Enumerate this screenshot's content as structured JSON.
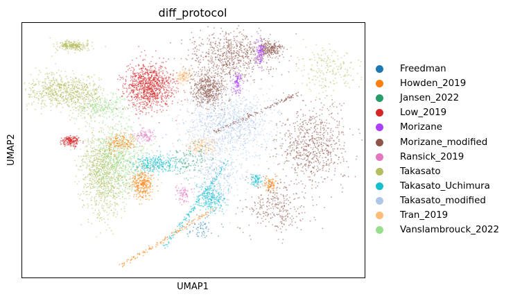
{
  "chart_data": {
    "type": "scatter",
    "title": "diff_protocol",
    "xlabel": "UMAP1",
    "ylabel": "UMAP2",
    "xticks": [],
    "yticks": [],
    "grid": false,
    "legend_position": "right",
    "series": [
      {
        "name": "Freedman",
        "color": "#1f77b4"
      },
      {
        "name": "Howden_2019",
        "color": "#ff7f0e"
      },
      {
        "name": "Jansen_2022",
        "color": "#279e68"
      },
      {
        "name": "Low_2019",
        "color": "#d62728"
      },
      {
        "name": "Morizane",
        "color": "#aa40fc"
      },
      {
        "name": "Morizane_modified",
        "color": "#8c564b"
      },
      {
        "name": "Ransick_2019",
        "color": "#e377c2"
      },
      {
        "name": "Takasato",
        "color": "#b5bd61"
      },
      {
        "name": "Takasato_Uchimura",
        "color": "#17becf"
      },
      {
        "name": "Takasato_modified",
        "color": "#aec7e8"
      },
      {
        "name": "Tran_2019",
        "color": "#ffbb78"
      },
      {
        "name": "Vanslambrouck_2022",
        "color": "#98df8a"
      }
    ]
  }
}
